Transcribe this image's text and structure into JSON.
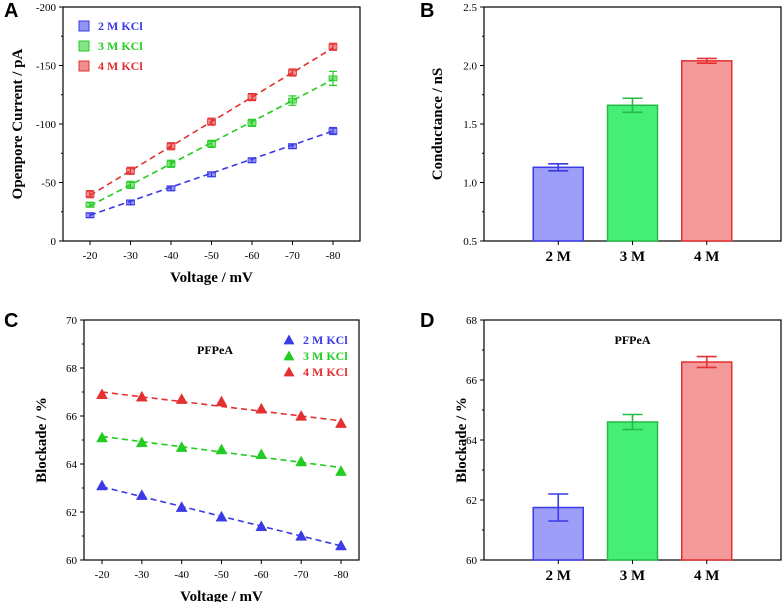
{
  "chart_data": [
    {
      "panel": "A",
      "type": "scatter",
      "xlabel": "Voltage / mV",
      "ylabel": "Openpore Current / pA",
      "x": [
        -20,
        -30,
        -40,
        -50,
        -60,
        -70,
        -80
      ],
      "x_tick_labels": [
        "-20",
        "-30",
        "-40",
        "-50",
        "-60",
        "-70",
        "-80"
      ],
      "ylim": [
        0,
        -200
      ],
      "y_ticks": [
        0,
        -50,
        -100,
        -150,
        -200
      ],
      "y_tick_labels": [
        "0",
        "-50",
        "-100",
        "-150",
        "-200"
      ],
      "legend": "top-left",
      "series": [
        {
          "name": "2 M KCl",
          "color": "#3a3ae6",
          "values": [
            -22,
            -33,
            -45,
            -57,
            -69,
            -81,
            -94
          ],
          "errors": [
            2,
            2,
            2,
            2,
            2,
            2,
            3
          ],
          "fit": [
            -22,
            -34,
            -46,
            -58,
            -70,
            -82,
            -94
          ]
        },
        {
          "name": "3 M KCl",
          "color": "#22cc22",
          "values": [
            -31,
            -48,
            -66,
            -83,
            -101,
            -120,
            -139
          ],
          "errors": [
            2,
            3,
            3,
            3,
            3,
            4,
            6
          ],
          "fit": [
            -30,
            -48,
            -66,
            -84,
            -102,
            -120,
            -138
          ]
        },
        {
          "name": "4 M KCl",
          "color": "#e33030",
          "values": [
            -40,
            -60,
            -81,
            -102,
            -123,
            -144,
            -166
          ],
          "errors": [
            3,
            3,
            3,
            3,
            3,
            3,
            3
          ],
          "fit": [
            -39,
            -60,
            -81,
            -102,
            -123,
            -144,
            -165
          ]
        }
      ]
    },
    {
      "panel": "B",
      "type": "bar",
      "categories": [
        "2 M",
        "3 M",
        "4 M"
      ],
      "values": [
        1.13,
        1.66,
        2.04
      ],
      "errors": [
        0.03,
        0.06,
        0.02
      ],
      "colors": [
        "#9d9ef8",
        "#44ee77",
        "#f59a9a"
      ],
      "edge_colors": [
        "#3a3ae6",
        "#22bb44",
        "#e33030"
      ],
      "ylabel": "Conductance / nS",
      "xlabel": "",
      "ylim": [
        0.5,
        2.5
      ],
      "y_ticks": [
        0.5,
        1.0,
        1.5,
        2.0,
        2.5
      ],
      "y_tick_labels": [
        "0.5",
        "1.0",
        "1.5",
        "2.0",
        "2.5"
      ]
    },
    {
      "panel": "C",
      "type": "scatter",
      "annotation": "PFPeA",
      "xlabel": "Voltage / mV",
      "ylabel": "Blockade / %",
      "x": [
        -20,
        -30,
        -40,
        -50,
        -60,
        -70,
        -80
      ],
      "x_tick_labels": [
        "-20",
        "-30",
        "-40",
        "-50",
        "-60",
        "-70",
        "-80"
      ],
      "ylim": [
        60,
        70
      ],
      "y_ticks": [
        60,
        62,
        64,
        66,
        68,
        70
      ],
      "y_tick_labels": [
        "60",
        "62",
        "64",
        "66",
        "68",
        "70"
      ],
      "legend": "top-right",
      "series": [
        {
          "name": "2 M KCl",
          "color": "#3a3ae6",
          "values": [
            63.1,
            62.7,
            62.2,
            61.8,
            61.4,
            61.0,
            60.6
          ],
          "fit": [
            63.05,
            62.64,
            62.23,
            61.82,
            61.41,
            61.0,
            60.59
          ]
        },
        {
          "name": "3 M KCl",
          "color": "#22cc22",
          "values": [
            65.1,
            64.9,
            64.7,
            64.6,
            64.4,
            64.1,
            63.7
          ],
          "fit": [
            65.15,
            64.93,
            64.72,
            64.5,
            64.28,
            64.07,
            63.85
          ]
        },
        {
          "name": "4 M KCl",
          "color": "#e33030",
          "values": [
            66.9,
            66.8,
            66.7,
            66.6,
            66.3,
            66.0,
            65.7
          ],
          "fit": [
            67.0,
            66.8,
            66.6,
            66.4,
            66.2,
            66.0,
            65.8
          ]
        }
      ]
    },
    {
      "panel": "D",
      "type": "bar",
      "annotation": "PFPeA",
      "categories": [
        "2 M",
        "3 M",
        "4 M"
      ],
      "values": [
        61.75,
        64.6,
        66.6
      ],
      "errors": [
        0.45,
        0.25,
        0.18
      ],
      "colors": [
        "#9d9ef8",
        "#44ee77",
        "#f59a9a"
      ],
      "edge_colors": [
        "#3a3ae6",
        "#22bb44",
        "#e33030"
      ],
      "ylabel": "Blockade / %",
      "xlabel": "",
      "ylim": [
        60,
        68
      ],
      "y_ticks": [
        60,
        62,
        64,
        66,
        68
      ],
      "y_tick_labels": [
        "60",
        "62",
        "64",
        "66",
        "68"
      ]
    }
  ]
}
